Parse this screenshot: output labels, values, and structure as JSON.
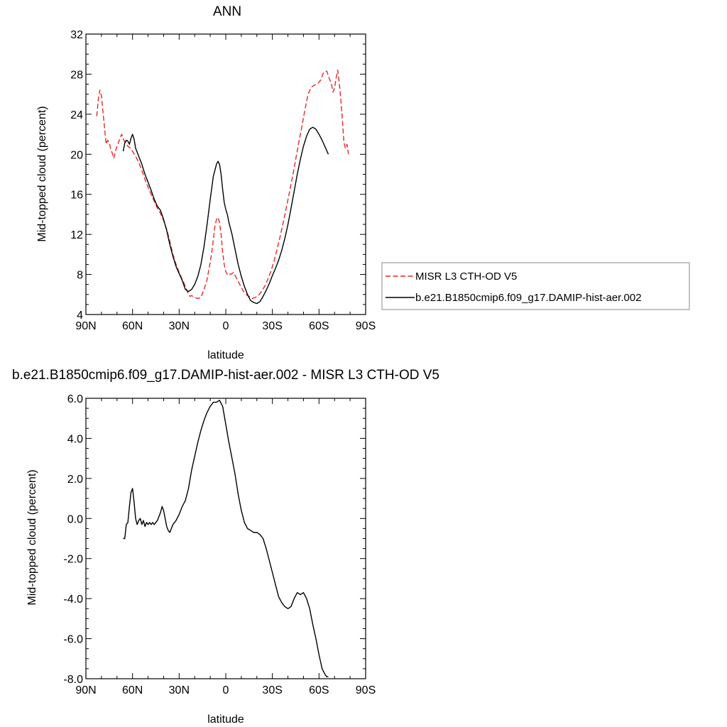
{
  "chart_data": [
    {
      "type": "line",
      "title": "ANN",
      "xlabel": "latitude",
      "ylabel": "Mid-topped cloud (percent)",
      "xlim": [
        90,
        -90
      ],
      "ylim": [
        4,
        32
      ],
      "xticks": [
        "90N",
        "60N",
        "30N",
        "0",
        "30S",
        "60S",
        "90S"
      ],
      "yticks": [
        "4",
        "8",
        "12",
        "16",
        "20",
        "24",
        "28",
        "32"
      ],
      "legend_position": "right",
      "series": [
        {
          "name": "MISR L3 CTH-OD V5",
          "color": "#e8262b",
          "dash": "dashed",
          "x": [
            83,
            82,
            81,
            80,
            79,
            78,
            77,
            76,
            75,
            74,
            73,
            72,
            71,
            70,
            69,
            68,
            67,
            66,
            65,
            64,
            63,
            62,
            61,
            60,
            58,
            56,
            54,
            52,
            50,
            48,
            46,
            44,
            42,
            40,
            38,
            36,
            34,
            32,
            30,
            28,
            26,
            24,
            23,
            22,
            20,
            18,
            16,
            14,
            12,
            10,
            9,
            8,
            7,
            6,
            5,
            4,
            3,
            2,
            1,
            0,
            -1,
            -2,
            -3,
            -5,
            -7,
            -9,
            -11,
            -13,
            -15,
            -17,
            -19,
            -21,
            -23,
            -25,
            -27,
            -29,
            -31,
            -33,
            -35,
            -37,
            -39,
            -41,
            -43,
            -45,
            -47,
            -49,
            -51,
            -53,
            -55,
            -57,
            -59,
            -61,
            -63,
            -65,
            -66,
            -67,
            -68,
            -69,
            -70,
            -71,
            -72,
            -73,
            -74,
            -75,
            -76,
            -77,
            -78,
            -79
          ],
          "y": [
            23.8,
            25.5,
            26.4,
            25.8,
            24.2,
            22.6,
            21.0,
            21.4,
            21.2,
            20.5,
            20.1,
            19.6,
            20.3,
            20.8,
            21.2,
            21.6,
            22.0,
            21.6,
            21.2,
            21.0,
            20.8,
            20.7,
            20.5,
            20.3,
            19.8,
            19.2,
            18.4,
            17.5,
            16.7,
            16.0,
            15.3,
            14.6,
            14.1,
            13.4,
            12.5,
            11.3,
            10.0,
            9.0,
            8.2,
            7.5,
            6.8,
            6.0,
            5.8,
            5.9,
            5.7,
            5.6,
            5.7,
            6.5,
            7.5,
            9.2,
            10.2,
            11.5,
            12.8,
            13.5,
            13.7,
            13.2,
            12.0,
            10.2,
            9.0,
            8.3,
            8.0,
            8.1,
            8.0,
            8.2,
            7.6,
            7.0,
            6.4,
            6.0,
            5.8,
            5.6,
            5.7,
            5.9,
            6.3,
            6.8,
            7.5,
            8.3,
            9.3,
            10.5,
            11.8,
            13.2,
            14.7,
            16.2,
            17.8,
            19.5,
            21.2,
            22.8,
            24.5,
            26.0,
            26.7,
            26.9,
            27.0,
            27.4,
            28.2,
            28.3,
            27.8,
            27.4,
            27.0,
            26.2,
            26.6,
            27.6,
            28.4,
            27.2,
            25.5,
            23.5,
            21.2,
            20.6,
            21.0,
            20.0
          ]
        },
        {
          "name": "b.e21.B1850cmip6.f09_g17.DAMIP-hist-aer.002",
          "color": "#000000",
          "dash": "solid",
          "x": [
            66,
            65,
            64,
            63,
            62,
            61,
            60,
            59,
            58,
            56,
            54,
            52,
            50,
            48,
            46,
            44,
            42,
            40,
            38,
            36,
            34,
            32,
            30,
            28,
            26,
            24,
            22,
            20,
            18,
            16,
            14,
            12,
            10,
            8,
            6,
            5,
            4,
            3,
            2,
            1,
            0,
            -1,
            -2,
            -4,
            -6,
            -8,
            -10,
            -12,
            -14,
            -16,
            -18,
            -20,
            -22,
            -24,
            -26,
            -28,
            -30,
            -32,
            -34,
            -36,
            -38,
            -40,
            -42,
            -44,
            -46,
            -48,
            -50,
            -52,
            -54,
            -56,
            -58,
            -60,
            -62,
            -64,
            -66
          ],
          "y": [
            20.3,
            21.1,
            21.4,
            21.3,
            21.0,
            21.6,
            22.0,
            21.5,
            20.6,
            19.8,
            19.0,
            18.0,
            17.2,
            16.4,
            15.5,
            14.8,
            14.4,
            13.5,
            12.4,
            11.0,
            9.8,
            8.8,
            8.1,
            7.4,
            6.5,
            6.3,
            6.5,
            7.0,
            7.8,
            9.0,
            10.8,
            13.0,
            15.5,
            17.8,
            19.0,
            19.3,
            19.0,
            18.0,
            16.5,
            15.2,
            14.5,
            14.0,
            13.2,
            12.0,
            10.5,
            9.0,
            7.8,
            6.8,
            6.0,
            5.4,
            5.2,
            5.1,
            5.3,
            5.8,
            6.4,
            7.1,
            7.9,
            8.6,
            9.4,
            10.4,
            11.6,
            13.0,
            14.6,
            16.3,
            18.0,
            19.5,
            20.8,
            21.8,
            22.5,
            22.7,
            22.5,
            22.0,
            21.4,
            20.7,
            20.0
          ]
        }
      ]
    },
    {
      "type": "line",
      "title": "b.e21.B1850cmip6.f09_g17.DAMIP-hist-aer.002 - MISR L3 CTH-OD V5",
      "xlabel": "latitude",
      "ylabel": "Mid-topped cloud (percent)",
      "xlim": [
        90,
        -90
      ],
      "ylim": [
        -8.0,
        6.0
      ],
      "xticks": [
        "90N",
        "60N",
        "30N",
        "0",
        "30S",
        "60S",
        "90S"
      ],
      "yticks": [
        "-8.0",
        "-6.0",
        "-4.0",
        "-2.0",
        "0.0",
        "2.0",
        "4.0",
        "6.0"
      ],
      "series": [
        {
          "color": "#000000",
          "dash": "solid",
          "x": [
            66,
            65,
            64,
            63,
            62,
            61,
            60,
            59,
            58,
            57,
            56,
            55,
            54,
            53,
            52,
            51,
            50,
            49,
            48,
            47,
            46,
            45,
            44,
            43,
            42,
            41,
            40,
            39,
            38,
            37,
            36,
            35,
            34,
            32,
            30,
            28,
            26,
            24,
            22,
            20,
            18,
            16,
            14,
            12,
            10,
            8,
            6,
            4,
            2,
            0,
            -2,
            -4,
            -6,
            -8,
            -10,
            -12,
            -14,
            -16,
            -18,
            -20,
            -22,
            -24,
            -26,
            -28,
            -30,
            -32,
            -34,
            -36,
            -38,
            -40,
            -42,
            -44,
            -46,
            -48,
            -50,
            -52,
            -54,
            -56,
            -58,
            -60,
            -62,
            -64,
            -65,
            -66
          ],
          "y": [
            -1.0,
            -1.0,
            -0.3,
            -0.2,
            0.6,
            1.3,
            1.5,
            0.8,
            0.0,
            -0.3,
            -0.1,
            0.0,
            -0.3,
            -0.1,
            -0.4,
            -0.2,
            -0.3,
            -0.2,
            -0.3,
            -0.2,
            -0.3,
            -0.2,
            -0.1,
            0.1,
            0.3,
            0.6,
            0.4,
            0.0,
            -0.4,
            -0.6,
            -0.7,
            -0.5,
            -0.3,
            -0.1,
            0.2,
            0.6,
            0.9,
            1.5,
            2.4,
            3.1,
            3.8,
            4.4,
            4.9,
            5.3,
            5.6,
            5.8,
            5.8,
            5.9,
            5.6,
            4.7,
            3.8,
            3.0,
            2.2,
            1.2,
            0.4,
            -0.2,
            -0.5,
            -0.6,
            -0.7,
            -0.7,
            -0.8,
            -1.0,
            -1.5,
            -2.1,
            -2.7,
            -3.3,
            -3.9,
            -4.2,
            -4.4,
            -4.5,
            -4.4,
            -4.0,
            -3.7,
            -3.8,
            -3.7,
            -4.0,
            -4.5,
            -5.3,
            -6.0,
            -6.8,
            -7.5,
            -7.8,
            -7.9,
            -7.9
          ]
        }
      ]
    }
  ]
}
